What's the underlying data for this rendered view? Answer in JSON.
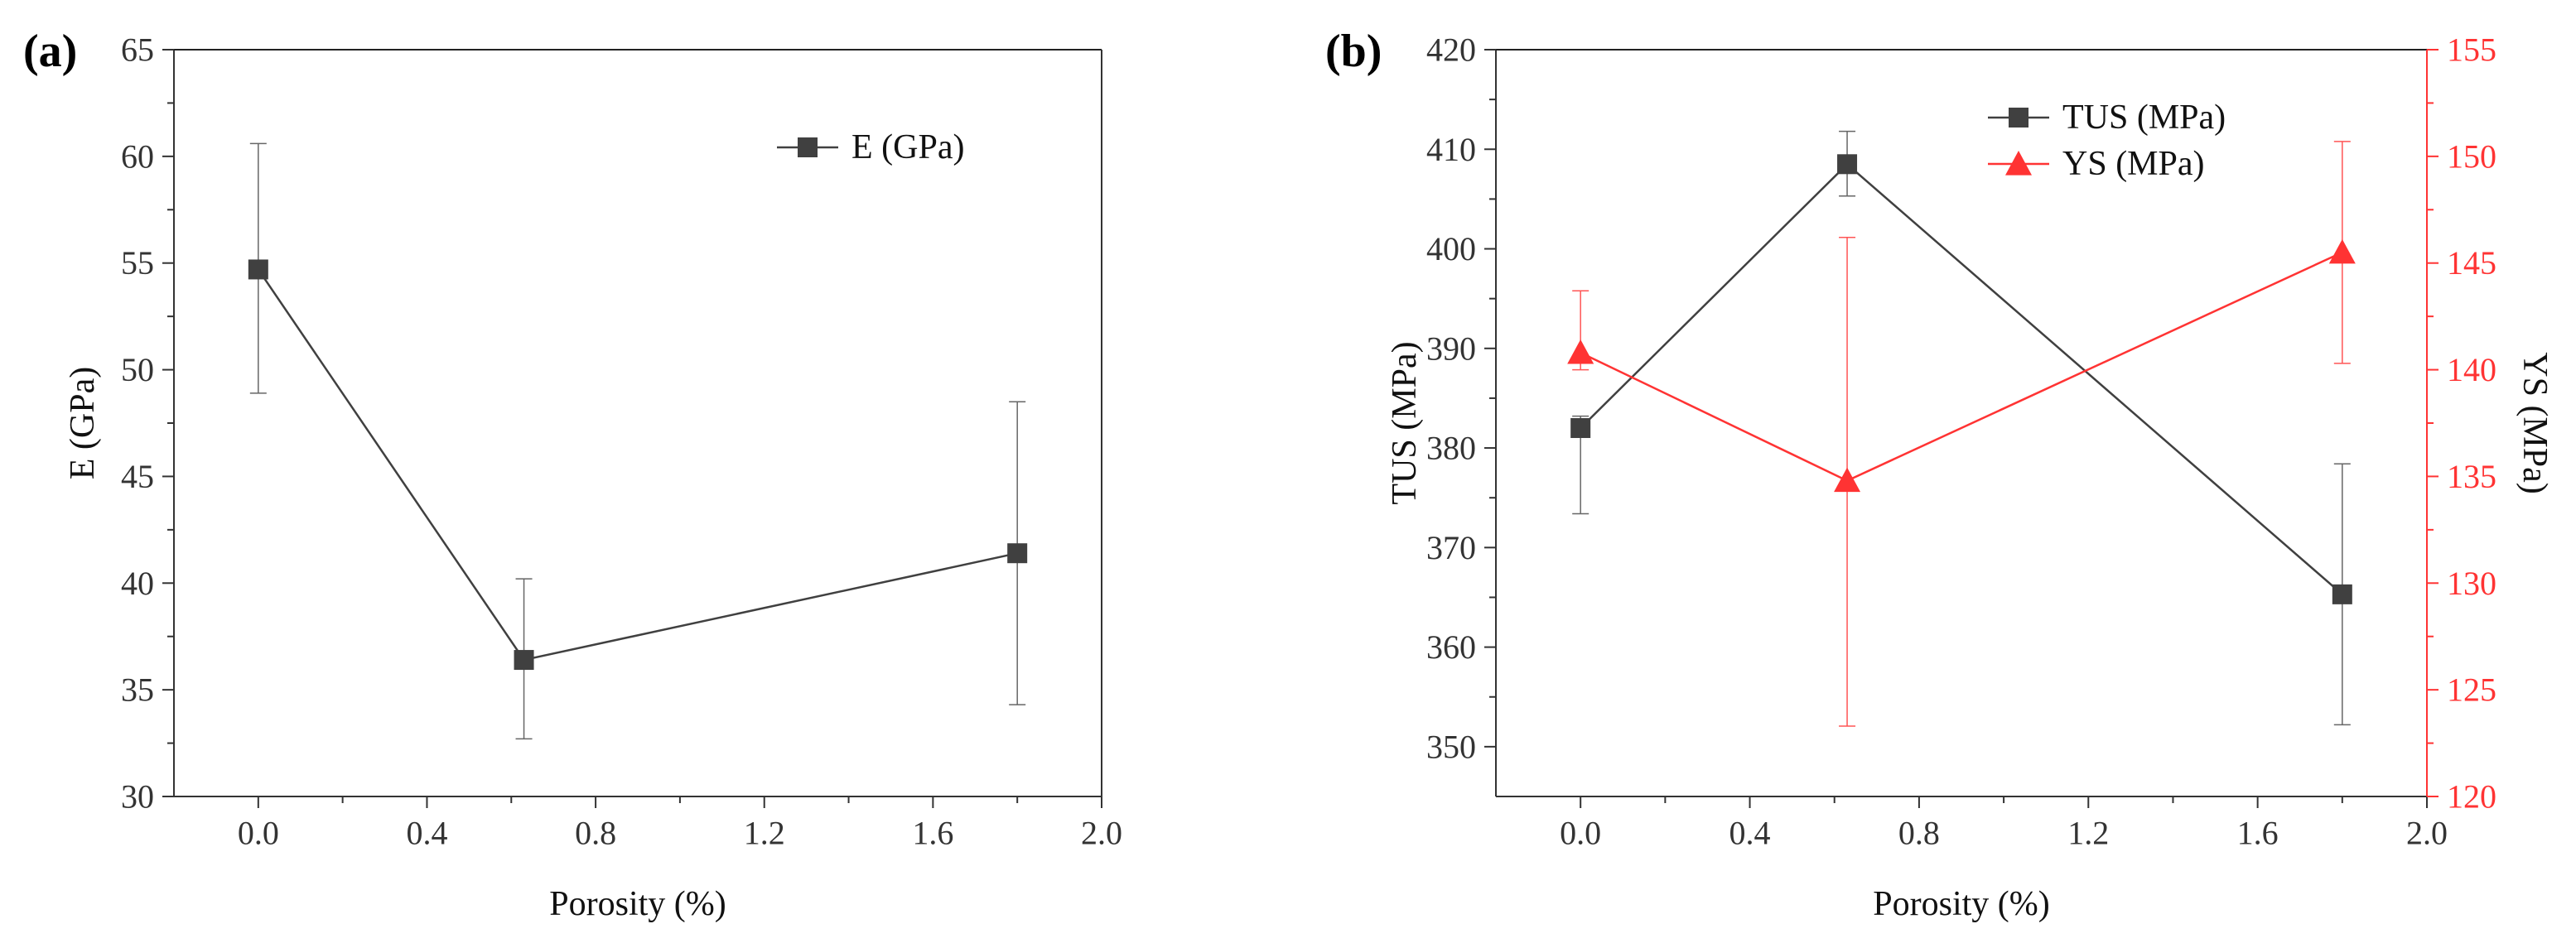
{
  "chart_data": [
    {
      "panel": "(a)",
      "type": "line",
      "title": "",
      "xlabel": "Porosity (%)",
      "ylabel": "E (GPa)",
      "xlim": [
        -0.2,
        2.0
      ],
      "ylim": [
        30,
        65
      ],
      "xticks": [
        "0.0",
        "0.4",
        "0.8",
        "1.2",
        "1.6",
        "2.0"
      ],
      "xtick_values": [
        0.0,
        0.4,
        0.8,
        1.2,
        1.6,
        2.0
      ],
      "yticks": [
        "30",
        "35",
        "40",
        "45",
        "50",
        "55",
        "60",
        "65"
      ],
      "ytick_values": [
        30,
        35,
        40,
        45,
        50,
        55,
        60,
        65
      ],
      "legend_position": "top-right",
      "series": [
        {
          "name": "E (GPa)",
          "marker": "square",
          "color": "#404040",
          "axis": "left",
          "x": [
            0.0,
            0.63,
            1.8
          ],
          "values": [
            54.7,
            36.4,
            41.4
          ],
          "err_low": [
            48.9,
            32.7,
            34.3
          ],
          "err_high": [
            60.6,
            40.2,
            48.5
          ]
        }
      ]
    },
    {
      "panel": "(b)",
      "type": "line",
      "title": "",
      "xlabel": "Porosity (%)",
      "ylabel": "TUS (MPa)",
      "ylabel_right": "YS (MPa)",
      "xlim": [
        -0.2,
        2.0
      ],
      "ylim": [
        345,
        420
      ],
      "ylim_right": [
        120,
        155
      ],
      "xticks": [
        "0.0",
        "0.4",
        "0.8",
        "1.2",
        "1.6",
        "2.0"
      ],
      "xtick_values": [
        0.0,
        0.4,
        0.8,
        1.2,
        1.6,
        2.0
      ],
      "yticks": [
        "350",
        "360",
        "370",
        "380",
        "390",
        "400",
        "410",
        "420"
      ],
      "ytick_values": [
        350,
        360,
        370,
        380,
        390,
        400,
        410,
        420
      ],
      "yticks_right": [
        "120",
        "125",
        "130",
        "135",
        "140",
        "145",
        "150",
        "155"
      ],
      "ytick_values_right": [
        120,
        125,
        130,
        135,
        140,
        145,
        150,
        155
      ],
      "legend_position": "top-right",
      "series": [
        {
          "name": "TUS (MPa)",
          "marker": "square",
          "color": "#404040",
          "axis": "left",
          "x": [
            0.0,
            0.63,
            1.8
          ],
          "values": [
            382.0,
            408.5,
            365.3
          ],
          "err_low": [
            373.4,
            405.3,
            352.2
          ],
          "err_high": [
            383.2,
            411.8,
            378.4
          ]
        },
        {
          "name": "YS (MPa)",
          "marker": "triangle",
          "color": "#ff3333",
          "axis": "right",
          "x": [
            0.0,
            0.63,
            1.8
          ],
          "values": [
            140.8,
            134.8,
            145.5
          ],
          "err_low": [
            140.0,
            123.3,
            140.3
          ],
          "err_high": [
            143.7,
            146.2,
            150.7
          ]
        }
      ]
    }
  ]
}
